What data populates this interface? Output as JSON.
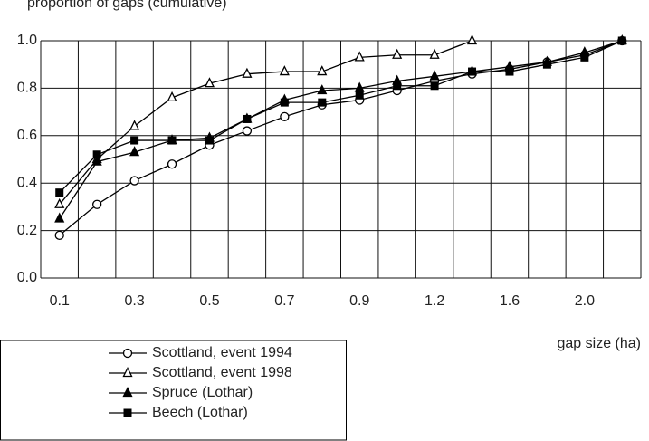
{
  "chart_data": {
    "type": "line",
    "y_label": "proportion of gaps (cumulative)",
    "x_label": "gap size (ha)",
    "categories": [
      "0.1",
      null,
      "0.3",
      null,
      "0.5",
      null,
      "0.7",
      null,
      "0.9",
      null,
      "1.2",
      null,
      "1.6",
      null,
      "2.0",
      null
    ],
    "series": [
      {
        "name": "Scottland, event 1994",
        "color": "#000000",
        "marker": "circle-open",
        "values": [
          0.18,
          0.31,
          0.41,
          0.48,
          0.56,
          0.62,
          0.68,
          0.73,
          0.75,
          0.79,
          0.83,
          0.86,
          0.88,
          0.91,
          0.94,
          1.0
        ]
      },
      {
        "name": "Scottland, event 1998",
        "color": "#000000",
        "marker": "triangle-open",
        "values": [
          0.31,
          0.5,
          0.64,
          0.76,
          0.82,
          0.86,
          0.87,
          0.87,
          0.93,
          0.94,
          0.94,
          1.0,
          null,
          null,
          null,
          null
        ]
      },
      {
        "name": "Spruce (Lothar)",
        "color": "#000000",
        "marker": "triangle",
        "values": [
          0.25,
          0.49,
          0.53,
          0.58,
          0.59,
          0.67,
          0.75,
          0.79,
          0.8,
          0.83,
          0.85,
          0.87,
          0.89,
          0.91,
          0.95,
          1.0
        ]
      },
      {
        "name": "Beech (Lothar)",
        "color": "#000000",
        "marker": "square",
        "values": [
          0.36,
          0.52,
          0.58,
          0.58,
          0.58,
          0.67,
          0.74,
          0.74,
          0.77,
          0.81,
          0.81,
          0.87,
          0.87,
          0.9,
          0.93,
          1.0
        ]
      }
    ],
    "ylim": [
      0,
      1
    ],
    "yticks": [
      {
        "value": 0,
        "label": "0.0"
      },
      {
        "value": 0.2,
        "label": "0.2"
      },
      {
        "value": 0.4,
        "label": "0.4"
      },
      {
        "value": 0.6,
        "label": "0.6"
      },
      {
        "value": 0.8,
        "label": "0.8"
      },
      {
        "value": 1,
        "label": "1.0"
      }
    ],
    "grid": true,
    "legend": "bottom-left"
  }
}
